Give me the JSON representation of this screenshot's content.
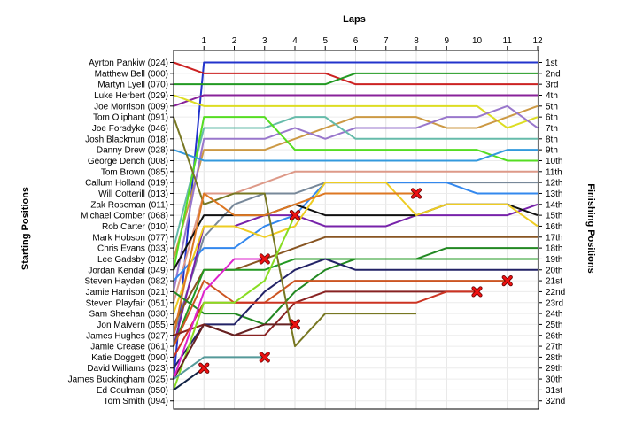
{
  "chart_data": {
    "type": "line",
    "title": "",
    "xlabel": "Laps",
    "ylabel_left": "Starting Positions",
    "ylabel_right": "Finishing Positions",
    "x_ticks": [
      1,
      2,
      3,
      4,
      5,
      6,
      7,
      8,
      9,
      10,
      11,
      12
    ],
    "y_range": [
      1,
      32
    ],
    "grid": true,
    "starting_labels": [
      "Ayrton Pankiw (024)",
      "Matthew Bell (000)",
      "Martyn Lyell (070)",
      "Luke Herbert (029)",
      "Joe Morrison (009)",
      "Tom Oliphant (091)",
      "Joe Forsdyke (046)",
      "Josh Blackmun (018)",
      "Danny Drew (028)",
      "George Dench (008)",
      "Tom Brown (085)",
      "Callum Holland (019)",
      "Will Cotterill (013)",
      "Zak Roseman (011)",
      "Michael Comber (068)",
      "Rob Carter (010)",
      "Mark Hobson (077)",
      "Chris Evans (033)",
      "Lee Gadsby (012)",
      "Jordan Kendal (049)",
      "Steven Hayden (082)",
      "Jamie Harrison (021)",
      "Steven Playfair (051)",
      "Sam Sheehan (030)",
      "Jon Malvern (055)",
      "James Hughes (027)",
      "Jamie Crease (061)",
      "Katie Doggett (090)",
      "David Williams (023)",
      "James Buckingham (025)",
      "Ed Coulman (050)",
      "Tom Smith (094)"
    ],
    "finishing_labels": [
      "1st",
      "2nd",
      "3rd",
      "4th",
      "5th",
      "6th",
      "7th",
      "8th",
      "9th",
      "10th",
      "11th",
      "12th",
      "13th",
      "14th",
      "15th",
      "16th",
      "17th",
      "18th",
      "19th",
      "20th",
      "21st",
      "22nd",
      "23rd",
      "24th",
      "25th",
      "26th",
      "27th",
      "28th",
      "29th",
      "30th",
      "31st",
      "32nd"
    ],
    "retirement_marker": "red-x-icon",
    "series": [
      {
        "color": "#2233cc",
        "values": [
          30,
          1,
          1,
          1,
          1,
          1,
          1,
          1,
          1,
          1,
          1,
          1,
          1
        ],
        "retired": false
      },
      {
        "color": "#cc2222",
        "values": [
          1,
          2,
          2,
          2,
          2,
          2,
          3,
          3,
          3,
          3,
          3,
          3,
          3
        ],
        "retired": false
      },
      {
        "color": "#229922",
        "values": [
          3,
          3,
          3,
          3,
          3,
          3,
          2,
          2,
          2,
          2,
          2,
          2,
          2
        ],
        "retired": false
      },
      {
        "color": "#882299",
        "values": [
          5,
          4,
          4,
          4,
          4,
          4,
          4,
          4,
          4,
          4,
          4,
          4,
          4
        ],
        "retired": false
      },
      {
        "color": "#dddd22",
        "values": [
          4,
          5,
          5,
          5,
          5,
          5,
          5,
          5,
          5,
          5,
          5,
          7,
          6
        ],
        "retired": false
      },
      {
        "color": "#cc9944",
        "values": [
          19,
          9,
          9,
          9,
          8,
          7,
          6,
          6,
          6,
          7,
          7,
          6,
          5
        ],
        "retired": false
      },
      {
        "color": "#9977cc",
        "values": [
          22,
          8,
          8,
          8,
          7,
          8,
          7,
          7,
          7,
          6,
          6,
          5,
          7
        ],
        "retired": false
      },
      {
        "color": "#66bbaa",
        "values": [
          18,
          7,
          7,
          7,
          6,
          6,
          8,
          8,
          8,
          8,
          8,
          8,
          8
        ],
        "retired": false
      },
      {
        "color": "#55dd22",
        "values": [
          20,
          6,
          6,
          6,
          9,
          9,
          9,
          9,
          9,
          9,
          9,
          10,
          10
        ],
        "retired": false
      },
      {
        "color": "#3399dd",
        "values": [
          9,
          10,
          10,
          10,
          10,
          10,
          10,
          10,
          10,
          10,
          10,
          9,
          9
        ],
        "retired": false
      },
      {
        "color": "#dd9988",
        "values": [
          23,
          13,
          13,
          12,
          11,
          11,
          11,
          11,
          11,
          11,
          11,
          11,
          11
        ],
        "retired": false
      },
      {
        "color": "#778899",
        "values": [
          26,
          17,
          14,
          13,
          13,
          12,
          12,
          12,
          12,
          12,
          12,
          12,
          12
        ],
        "retired": false
      },
      {
        "color": "#3388ee",
        "values": [
          21,
          18,
          18,
          16,
          15,
          12,
          12,
          12,
          12,
          12,
          13,
          13,
          13
        ],
        "retired": false
      },
      {
        "color": "#7722aa",
        "values": [
          27,
          16,
          16,
          15,
          15,
          16,
          16,
          16,
          15,
          15,
          15,
          15,
          14
        ],
        "retired": false
      },
      {
        "color": "#111111",
        "values": [
          20,
          15,
          15,
          15,
          14,
          15,
          15,
          15,
          15,
          14,
          14,
          14,
          15
        ],
        "retired": false
      },
      {
        "color": "#eecc22",
        "values": [
          24,
          16,
          16,
          17,
          16,
          12,
          12,
          12,
          15,
          14,
          14,
          14,
          16
        ],
        "retired": false
      },
      {
        "color": "#885522",
        "values": [
          25,
          20,
          20,
          19,
          18,
          17,
          17,
          17,
          17,
          17,
          17,
          17,
          17
        ],
        "retired": false
      },
      {
        "color": "#228822",
        "values": [
          22,
          24,
          24,
          25,
          22,
          20,
          19,
          19,
          19,
          18,
          18,
          18,
          18
        ],
        "retired": false
      },
      {
        "color": "#229922",
        "values": [
          27,
          20,
          20,
          20,
          19,
          19,
          19,
          19,
          19,
          19,
          19,
          19,
          19
        ],
        "retired": false
      },
      {
        "color": "#222266",
        "values": [
          29,
          25,
          25,
          22,
          20,
          19,
          20,
          20,
          20,
          20,
          20,
          20,
          20
        ],
        "retired": false
      },
      {
        "color": "#cc5522",
        "values": [
          27,
          21,
          23,
          23,
          21,
          21,
          21,
          21,
          21,
          21,
          21,
          21
        ],
        "retired": true
      },
      {
        "color": "#882222",
        "values": [
          26,
          25,
          26,
          26,
          23,
          22,
          22,
          22,
          22,
          22,
          22
        ],
        "retired": true
      },
      {
        "color": "#cc3322",
        "values": [
          28,
          23,
          23,
          23,
          23,
          23,
          23,
          23,
          23,
          22,
          22
        ],
        "retired": false
      },
      {
        "color": "#777722",
        "values": [
          6,
          14,
          13,
          13,
          27,
          24,
          24,
          24,
          24
        ],
        "retired": false
      },
      {
        "color": "#dd7722",
        "values": [
          26,
          13,
          15,
          15,
          14,
          13,
          13,
          13,
          13
        ],
        "retired": true
      },
      {
        "color": "#88dd22",
        "values": [
          31,
          23,
          23,
          21,
          15
        ],
        "retired": true
      },
      {
        "color": "#662222",
        "values": [
          30,
          25,
          26,
          25,
          25
        ],
        "retired": true
      },
      {
        "color": "#dd22cc",
        "values": [
          30,
          22,
          19,
          19
        ],
        "retired": true
      },
      {
        "color": "#559999",
        "values": [
          30,
          28,
          28,
          28
        ],
        "retired": true
      },
      {
        "color": "#112244",
        "values": [
          31,
          29
        ],
        "retired": true
      }
    ]
  }
}
